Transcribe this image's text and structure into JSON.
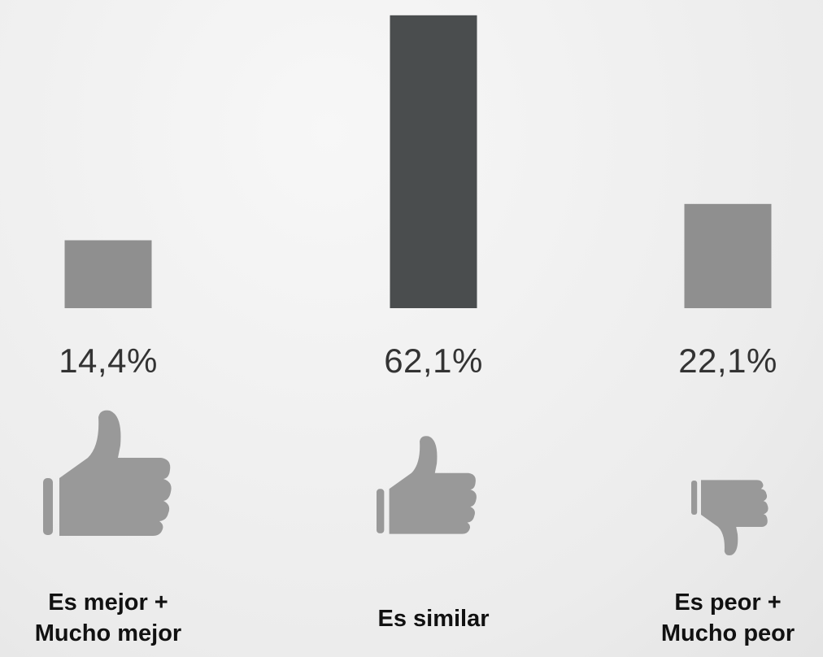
{
  "chart_data": {
    "type": "bar",
    "categories": [
      "Es mejor +\nMucho mejor",
      "Es similar",
      "Es peor +\nMucho peor"
    ],
    "values": [
      14.4,
      62.1,
      22.1
    ],
    "value_labels": [
      "14,4%",
      "62,1%",
      "22,1%"
    ],
    "colors": [
      "#8f8f8f",
      "#4a4d4e",
      "#8f8f8f"
    ]
  }
}
